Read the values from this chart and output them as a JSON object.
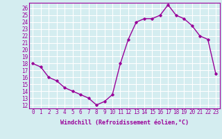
{
  "x": [
    0,
    1,
    2,
    3,
    4,
    5,
    6,
    7,
    8,
    9,
    10,
    11,
    12,
    13,
    14,
    15,
    16,
    17,
    18,
    19,
    20,
    21,
    22,
    23
  ],
  "y": [
    18.0,
    17.5,
    16.0,
    15.5,
    14.5,
    14.0,
    13.5,
    13.0,
    12.0,
    12.5,
    13.5,
    18.0,
    21.5,
    24.0,
    24.5,
    24.5,
    25.0,
    26.5,
    25.0,
    24.5,
    23.5,
    22.0,
    21.5,
    16.5
  ],
  "line_color": "#990099",
  "marker": "D",
  "marker_size": 1.8,
  "xlabel": "Windchill (Refroidissement éolien,°C)",
  "ylabel_ticks": [
    12,
    13,
    14,
    15,
    16,
    17,
    18,
    19,
    20,
    21,
    22,
    23,
    24,
    25,
    26
  ],
  "ylim": [
    11.5,
    26.8
  ],
  "xlim": [
    -0.5,
    23.5
  ],
  "bg_color": "#d4edf0",
  "grid_color": "#ffffff",
  "tick_color": "#990099",
  "label_color": "#990099",
  "xlabel_fontsize": 6,
  "tick_fontsize": 5.5,
  "linewidth": 1.0
}
